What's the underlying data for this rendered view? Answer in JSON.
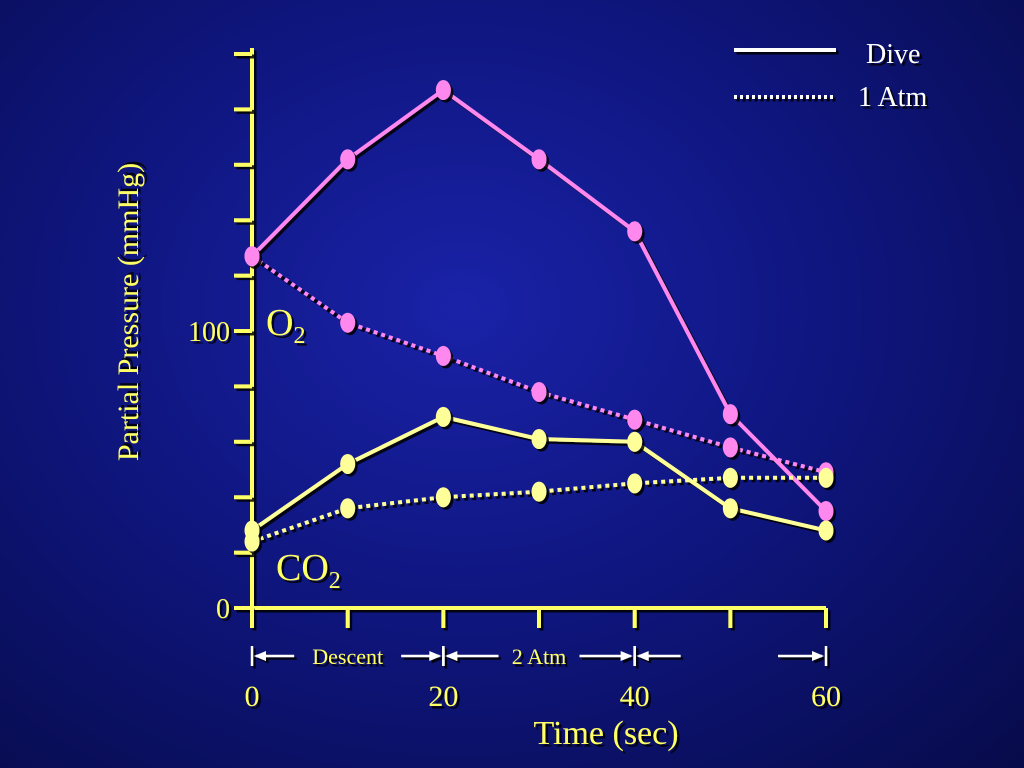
{
  "chart_data": {
    "type": "line",
    "ylabel": "Partial Pressure  (mmHg)",
    "xlabel": "Time  (sec)",
    "xlim": [
      0,
      60
    ],
    "ylim": [
      0,
      200
    ],
    "x_ticks": [
      0,
      20,
      40,
      60
    ],
    "x_tick_labels": [
      "0",
      "20",
      "40",
      "60"
    ],
    "y_ticks_labeled": [
      0,
      100
    ],
    "y_tick_labels": [
      "0",
      "100"
    ],
    "y_minor_tick_step": 20,
    "legend": {
      "placement": "top-right",
      "entries": [
        {
          "label": "Dive",
          "style": "solid"
        },
        {
          "label": "1 Atm",
          "style": "dotted"
        }
      ]
    },
    "gas_labels": {
      "o2": {
        "base": "O",
        "sub": "2"
      },
      "co2": {
        "base": "CO",
        "sub": "2"
      }
    },
    "phases": [
      {
        "label": "Descent",
        "from": 0,
        "to": 20
      },
      {
        "label": "2 Atm",
        "from": 20,
        "to": 40
      },
      {
        "label": "",
        "from": 40,
        "to": 60
      }
    ],
    "series": [
      {
        "gas": "O2",
        "condition": "Dive",
        "style": "solid",
        "color": "#ff88ee",
        "x": [
          0,
          10,
          20,
          30,
          40,
          50,
          60
        ],
        "y": [
          127,
          162,
          187,
          162,
          136,
          70,
          35
        ]
      },
      {
        "gas": "O2",
        "condition": "1 Atm",
        "style": "dotted",
        "color": "#ff88ee",
        "x": [
          0,
          10,
          20,
          30,
          40,
          50,
          60
        ],
        "y": [
          127,
          103,
          91,
          78,
          68,
          58,
          49
        ]
      },
      {
        "gas": "CO2",
        "condition": "Dive",
        "style": "solid",
        "color": "#ffff99",
        "x": [
          0,
          10,
          20,
          30,
          40,
          50,
          60
        ],
        "y": [
          28,
          52,
          69,
          61,
          60,
          36,
          28
        ]
      },
      {
        "gas": "CO2",
        "condition": "1 Atm",
        "style": "dotted",
        "color": "#ffff99",
        "x": [
          0,
          10,
          20,
          30,
          40,
          50,
          60
        ],
        "y": [
          24,
          36,
          40,
          42,
          45,
          47,
          47
        ]
      }
    ]
  },
  "colors": {
    "axis": "#ffff66",
    "o2": "#ff88ee",
    "co2": "#ffff99",
    "text": "#ffff66",
    "legend_text": "#ffffff"
  }
}
